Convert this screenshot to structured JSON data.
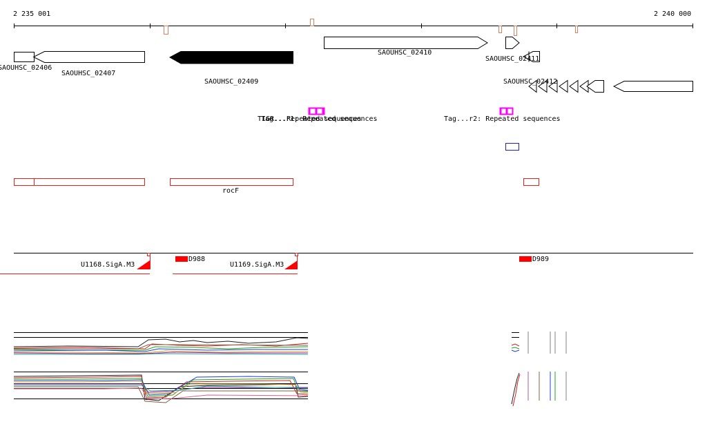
{
  "ruler": {
    "start_label": "2 235 001",
    "end_label": "2 240 000"
  },
  "genes": [
    {
      "id": "g02406",
      "name": "SAOUHSC_02406",
      "strand": "+",
      "filled": false
    },
    {
      "id": "g02407",
      "name": "SAOUHSC_02407",
      "strand": "-",
      "filled": false
    },
    {
      "id": "g02409",
      "name": "SAOUHSC_02409",
      "strand": "-",
      "filled": true
    },
    {
      "id": "g02410",
      "name": "SAOUHSC_02410",
      "strand": "+",
      "filled": false
    },
    {
      "id": "g02411",
      "name": "SAOUHSC_02411",
      "strand": "+",
      "filled": false
    },
    {
      "id": "g02412",
      "name": "SAOUHSC_02412",
      "strand": "-",
      "filled": false
    }
  ],
  "repeats": [
    {
      "label": "TIGR...Repeated sequences"
    },
    {
      "label": "Tag...r2: Repeated sequences"
    }
  ],
  "annotations": {
    "rocF_label": "rocF"
  },
  "promoters": [
    {
      "name": "U1168.SigA.M3"
    },
    {
      "name": "U1169.SigA.M3"
    }
  ],
  "tss": [
    {
      "name": "D988"
    },
    {
      "name": "D989"
    }
  ],
  "colors": {
    "gene_stroke": "#000000",
    "gene_fill_highlight": "#000000",
    "repeat": "#ff00ff",
    "annotation": "#e8201c",
    "tss": "#ff0000",
    "misc_feature": "#2020c0",
    "tick_mark": "#d88060"
  }
}
